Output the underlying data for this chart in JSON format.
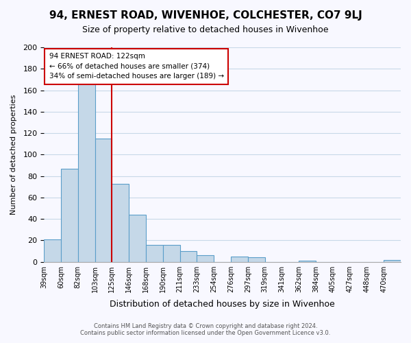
{
  "title": "94, ERNEST ROAD, WIVENHOE, COLCHESTER, CO7 9LJ",
  "subtitle": "Size of property relative to detached houses in Wivenhoe",
  "xlabel": "Distribution of detached houses by size in Wivenhoe",
  "ylabel": "Number of detached properties",
  "bin_labels": [
    "39sqm",
    "60sqm",
    "82sqm",
    "103sqm",
    "125sqm",
    "146sqm",
    "168sqm",
    "190sqm",
    "211sqm",
    "233sqm",
    "254sqm",
    "276sqm",
    "297sqm",
    "319sqm",
    "341sqm",
    "362sqm",
    "384sqm",
    "405sqm",
    "427sqm",
    "448sqm",
    "470sqm"
  ],
  "bar_heights": [
    21,
    87,
    168,
    115,
    73,
    44,
    16,
    16,
    10,
    6,
    0,
    5,
    4,
    0,
    0,
    1,
    0,
    0,
    0,
    0,
    2
  ],
  "bar_color": "#c5d8e8",
  "bar_edge_color": "#5a9ec9",
  "ylim": [
    0,
    200
  ],
  "yticks": [
    0,
    20,
    40,
    60,
    80,
    100,
    120,
    140,
    160,
    180,
    200
  ],
  "property_line_x": 4.0,
  "property_line_color": "#cc0000",
  "annotation_box_text": "94 ERNEST ROAD: 122sqm\n← 66% of detached houses are smaller (374)\n34% of semi-detached houses are larger (189) →",
  "annotation_box_color": "#cc0000",
  "footer_line1": "Contains HM Land Registry data © Crown copyright and database right 2024.",
  "footer_line2": "Contains public sector information licensed under the Open Government Licence v3.0.",
  "background_color": "#f8f8ff",
  "grid_color": "#c8d8e8"
}
